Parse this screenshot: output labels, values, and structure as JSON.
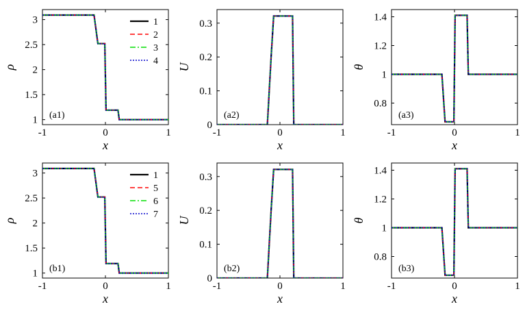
{
  "legend_styles": {
    "1": {
      "color": "#000000",
      "dash": "none",
      "width": 2.2
    },
    "2": {
      "color": "#ff0000",
      "dash": "7,4",
      "width": 1.6
    },
    "3": {
      "color": "#00dd00",
      "dash": "8,3,2,3",
      "width": 1.6
    },
    "4": {
      "color": "#0000cc",
      "dash": "2,2",
      "width": 1.6
    },
    "5": {
      "color": "#ff0000",
      "dash": "7,4",
      "width": 1.6
    },
    "6": {
      "color": "#00dd00",
      "dash": "8,3,2,3",
      "width": 1.6
    },
    "7": {
      "color": "#0000cc",
      "dash": "2,2",
      "width": 1.6
    }
  },
  "chart_data": [
    {
      "type": "line",
      "panel_label": "(a1)",
      "xlabel": "x",
      "ylabel": "ρ",
      "xlim": [
        -1,
        1
      ],
      "ylim": [
        0.9,
        3.2
      ],
      "xticks": [
        "-1",
        "0",
        "1"
      ],
      "xtick_values": [
        -1,
        0,
        1
      ],
      "yticks": [
        "1",
        "1.5",
        "2",
        "2.5",
        "3"
      ],
      "ytick_values": [
        1,
        1.5,
        2,
        2.5,
        3
      ],
      "legend": [
        "1",
        "2",
        "3",
        "4"
      ],
      "series": [
        {
          "name": "1",
          "x": [
            -1,
            -0.18,
            -0.12,
            -0.01,
            0.01,
            0.05,
            0.2,
            0.22,
            1
          ],
          "y": [
            3.09,
            3.09,
            2.52,
            2.52,
            1.19,
            1.19,
            1.19,
            1.0,
            1.0
          ]
        }
      ]
    },
    {
      "type": "line",
      "panel_label": "(a2)",
      "xlabel": "x",
      "ylabel": "U",
      "xlim": [
        -1,
        1
      ],
      "ylim": [
        0,
        0.34
      ],
      "xticks": [
        "-1",
        "0",
        "1"
      ],
      "xtick_values": [
        -1,
        0,
        1
      ],
      "yticks": [
        "0",
        "0.1",
        "0.2",
        "0.3"
      ],
      "ytick_values": [
        0,
        0.1,
        0.2,
        0.3
      ],
      "legend": [],
      "series": [
        {
          "name": "1",
          "x": [
            -1,
            -0.2,
            -0.14,
            -0.1,
            0.2,
            0.22,
            1
          ],
          "y": [
            0,
            0,
            0.2,
            0.321,
            0.321,
            0,
            0
          ]
        }
      ]
    },
    {
      "type": "line",
      "panel_label": "(a3)",
      "xlabel": "x",
      "ylabel": "θ",
      "xlim": [
        -1,
        1
      ],
      "ylim": [
        0.65,
        1.45
      ],
      "xticks": [
        "-1",
        "0",
        "1"
      ],
      "xtick_values": [
        -1,
        0,
        1
      ],
      "yticks": [
        "0.8",
        "1",
        "1.2",
        "1.4"
      ],
      "ytick_values": [
        0.8,
        1,
        1.2,
        1.4
      ],
      "legend": [],
      "series": [
        {
          "name": "1",
          "x": [
            -1,
            -0.2,
            -0.15,
            -0.01,
            0.01,
            0.2,
            0.22,
            1
          ],
          "y": [
            1.0,
            1.0,
            0.67,
            0.67,
            1.41,
            1.41,
            1.0,
            1.0
          ]
        }
      ]
    },
    {
      "type": "line",
      "panel_label": "(b1)",
      "xlabel": "x",
      "ylabel": "ρ",
      "xlim": [
        -1,
        1
      ],
      "ylim": [
        0.9,
        3.2
      ],
      "xticks": [
        "-1",
        "0",
        "1"
      ],
      "xtick_values": [
        -1,
        0,
        1
      ],
      "yticks": [
        "1",
        "1.5",
        "2",
        "2.5",
        "3"
      ],
      "ytick_values": [
        1,
        1.5,
        2,
        2.5,
        3
      ],
      "legend": [
        "1",
        "5",
        "6",
        "7"
      ],
      "series": [
        {
          "name": "1",
          "x": [
            -1,
            -0.18,
            -0.12,
            -0.01,
            0.01,
            0.05,
            0.2,
            0.22,
            1
          ],
          "y": [
            3.09,
            3.09,
            2.52,
            2.52,
            1.19,
            1.19,
            1.19,
            1.0,
            1.0
          ]
        }
      ]
    },
    {
      "type": "line",
      "panel_label": "(b2)",
      "xlabel": "x",
      "ylabel": "U",
      "xlim": [
        -1,
        1
      ],
      "ylim": [
        0,
        0.34
      ],
      "xticks": [
        "-1",
        "0",
        "1"
      ],
      "xtick_values": [
        -1,
        0,
        1
      ],
      "yticks": [
        "0",
        "0.1",
        "0.2",
        "0.3"
      ],
      "ytick_values": [
        0,
        0.1,
        0.2,
        0.3
      ],
      "legend": [],
      "series": [
        {
          "name": "1",
          "x": [
            -1,
            -0.2,
            -0.14,
            -0.1,
            0.2,
            0.22,
            1
          ],
          "y": [
            0,
            0,
            0.2,
            0.321,
            0.321,
            0,
            0
          ]
        }
      ]
    },
    {
      "type": "line",
      "panel_label": "(b3)",
      "xlabel": "x",
      "ylabel": "θ",
      "xlim": [
        -1,
        1
      ],
      "ylim": [
        0.65,
        1.45
      ],
      "xticks": [
        "-1",
        "0",
        "1"
      ],
      "xtick_values": [
        -1,
        0,
        1
      ],
      "yticks": [
        "0.8",
        "1",
        "1.2",
        "1.4"
      ],
      "ytick_values": [
        0.8,
        1,
        1.2,
        1.4
      ],
      "legend": [],
      "series": [
        {
          "name": "1",
          "x": [
            -1,
            -0.2,
            -0.15,
            -0.01,
            0.01,
            0.2,
            0.22,
            1
          ],
          "y": [
            1.0,
            1.0,
            0.67,
            0.67,
            1.41,
            1.41,
            1.0,
            1.0
          ]
        }
      ]
    }
  ]
}
